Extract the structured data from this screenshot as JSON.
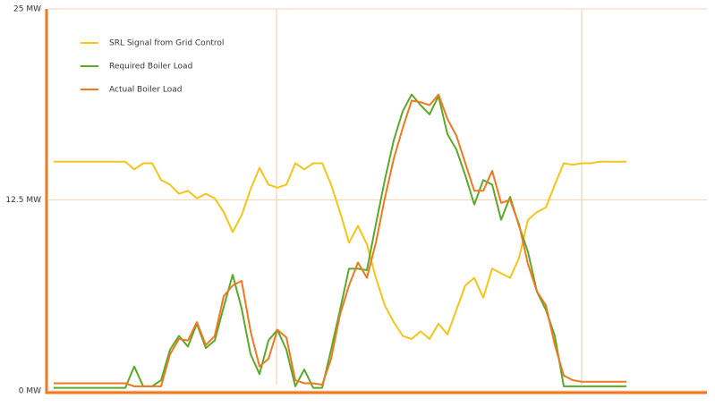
{
  "chart_data": {
    "type": "line",
    "x": [
      0,
      1,
      2,
      3,
      4,
      5,
      6,
      7,
      8,
      9,
      10,
      11,
      12,
      13,
      14,
      15,
      16,
      17,
      18,
      19,
      20,
      21,
      22,
      23,
      24,
      25,
      26,
      27,
      28,
      29,
      30,
      31,
      32,
      33,
      34,
      35,
      36,
      37,
      38,
      39,
      40,
      41,
      42,
      43,
      44,
      45,
      46,
      47,
      48,
      49,
      50,
      51,
      52,
      53,
      54,
      55,
      56,
      57,
      58,
      59,
      60,
      61,
      62,
      63,
      64
    ],
    "xlim": [
      -0.5,
      73
    ],
    "ylim": [
      0,
      25
    ],
    "yticks": [
      {
        "value": 0,
        "label": "0 MW"
      },
      {
        "value": 12.5,
        "label": "12.5 MW"
      },
      {
        "value": 25,
        "label": "25 MW"
      }
    ],
    "grid": true,
    "legend": "top-left",
    "series": [
      {
        "name": "SRL Signal from Grid Control",
        "color": "#f5c518",
        "values": [
          15.0,
          15.0,
          15.0,
          15.0,
          15.0,
          15.0,
          15.0,
          15.0,
          15.0,
          14.5,
          14.9,
          14.9,
          13.8,
          13.5,
          12.9,
          13.1,
          12.6,
          12.9,
          12.6,
          11.7,
          10.4,
          11.5,
          13.2,
          14.6,
          13.5,
          13.3,
          13.5,
          14.9,
          14.5,
          14.9,
          14.9,
          13.5,
          11.7,
          9.7,
          10.8,
          9.6,
          7.4,
          5.6,
          4.5,
          3.6,
          3.4,
          3.9,
          3.4,
          4.4,
          3.7,
          5.3,
          6.9,
          7.4,
          6.1,
          8.0,
          7.7,
          7.4,
          8.7,
          11.2,
          11.7,
          12.0,
          13.5,
          14.9,
          14.8,
          14.9,
          14.9,
          15.0,
          15.0,
          15.0,
          15.0
        ]
      },
      {
        "name": "Required Boiler Load",
        "color": "#5aaa28",
        "values": [
          0.2,
          0.2,
          0.2,
          0.2,
          0.2,
          0.2,
          0.2,
          0.2,
          0.2,
          1.6,
          0.3,
          0.3,
          0.7,
          2.7,
          3.6,
          2.9,
          4.4,
          2.8,
          3.3,
          5.5,
          7.6,
          5.4,
          2.4,
          1.1,
          3.3,
          4.0,
          2.7,
          0.3,
          1.4,
          0.2,
          0.2,
          2.7,
          5.3,
          8.0,
          8.0,
          7.9,
          10.9,
          13.8,
          16.4,
          18.3,
          19.4,
          18.7,
          18.1,
          19.3,
          16.8,
          15.8,
          14.1,
          12.2,
          13.8,
          13.5,
          11.2,
          12.7,
          10.8,
          9.1,
          6.5,
          5.3,
          3.6,
          0.3,
          0.3,
          0.3,
          0.3,
          0.3,
          0.3,
          0.3,
          0.3
        ]
      },
      {
        "name": "Actual Boiler Load",
        "color": "#f07820",
        "values": [
          0.5,
          0.5,
          0.5,
          0.5,
          0.5,
          0.5,
          0.5,
          0.5,
          0.5,
          0.3,
          0.3,
          0.3,
          0.3,
          2.4,
          3.4,
          3.3,
          4.5,
          3.0,
          3.6,
          6.2,
          6.9,
          7.2,
          3.9,
          1.6,
          2.1,
          4.0,
          3.5,
          0.7,
          0.5,
          0.5,
          0.4,
          2.1,
          5.0,
          6.9,
          8.4,
          7.4,
          9.7,
          12.6,
          15.2,
          17.2,
          19.0,
          18.9,
          18.7,
          19.4,
          17.8,
          16.7,
          14.9,
          13.1,
          13.1,
          14.4,
          12.3,
          12.5,
          10.9,
          8.3,
          6.5,
          5.6,
          3.0,
          1.0,
          0.7,
          0.6,
          0.6,
          0.6,
          0.6,
          0.6,
          0.6
        ]
      }
    ]
  }
}
